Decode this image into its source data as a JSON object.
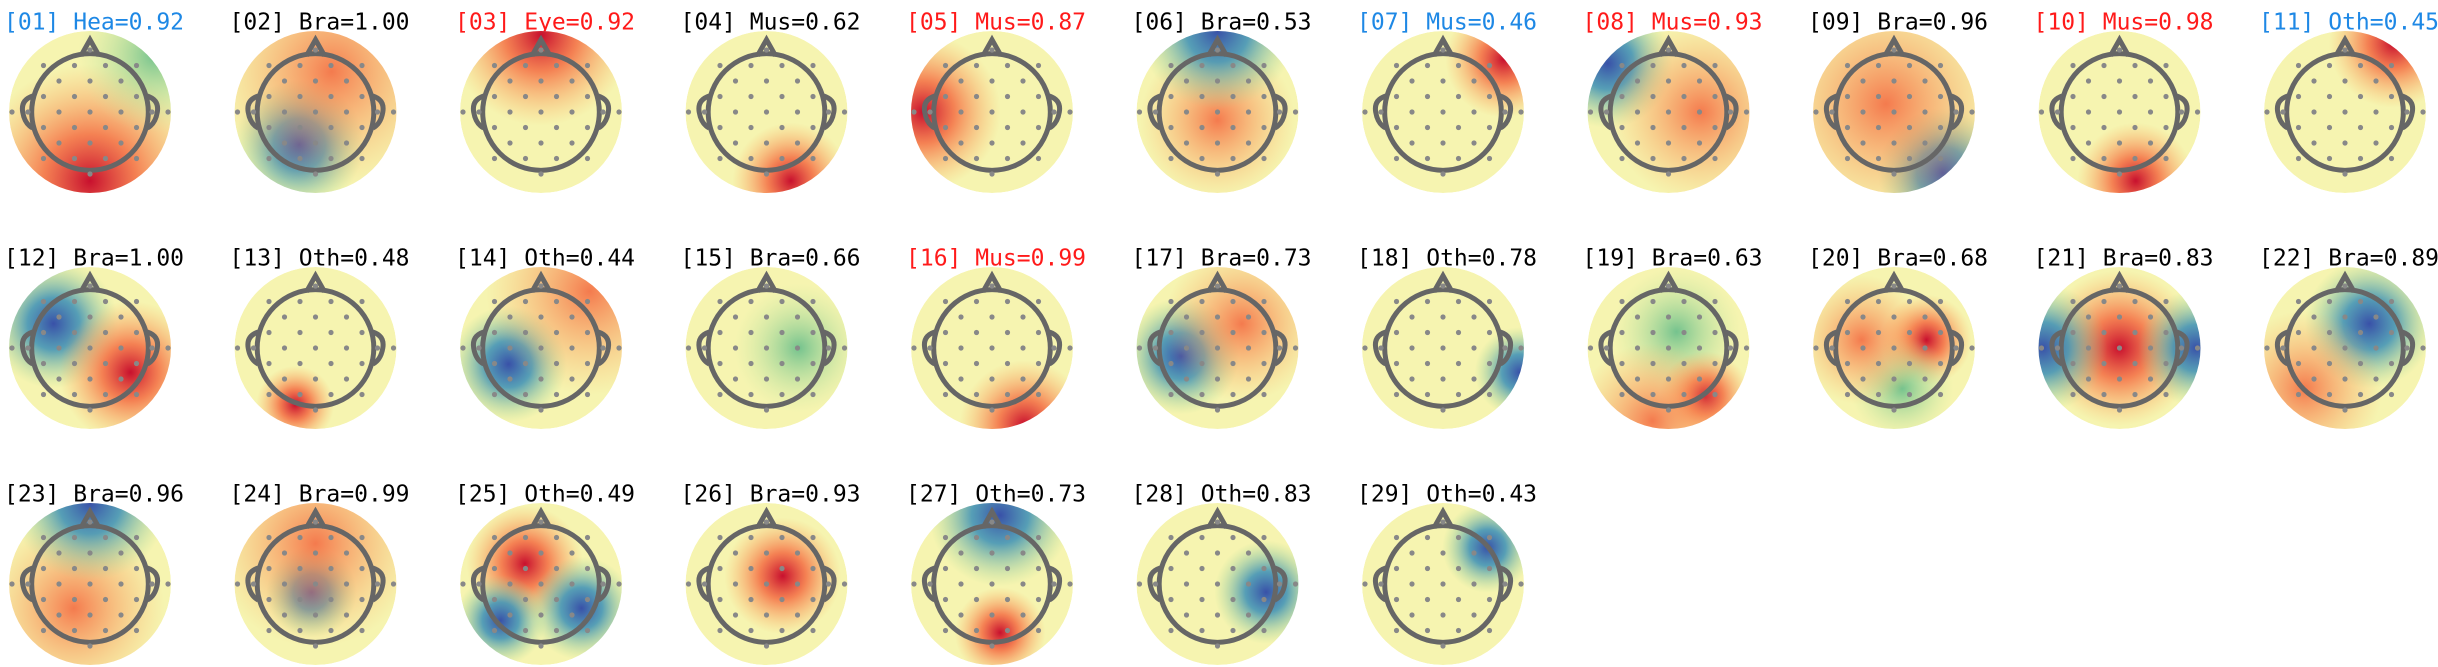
{
  "components": [
    {
      "label": "[01] Hea=0.92",
      "color": "#1e88e5"
    },
    {
      "label": "[02] Bra=1.00",
      "color": "#000000"
    },
    {
      "label": "[03] Eye=0.92",
      "color": "#ff1a1a"
    },
    {
      "label": "[04] Mus=0.62",
      "color": "#000000"
    },
    {
      "label": "[05] Mus=0.87",
      "color": "#ff1a1a"
    },
    {
      "label": "[06] Bra=0.53",
      "color": "#000000"
    },
    {
      "label": "[07] Mus=0.46",
      "color": "#1e88e5"
    },
    {
      "label": "[08] Mus=0.93",
      "color": "#ff1a1a"
    },
    {
      "label": "[09] Bra=0.96",
      "color": "#000000"
    },
    {
      "label": "[10] Mus=0.98",
      "color": "#ff1a1a"
    },
    {
      "label": "[11] Oth=0.45",
      "color": "#1e88e5"
    },
    {
      "label": "[12] Bra=1.00",
      "color": "#000000"
    },
    {
      "label": "[13] Oth=0.48",
      "color": "#000000"
    },
    {
      "label": "[14] Oth=0.44",
      "color": "#000000"
    },
    {
      "label": "[15] Bra=0.66",
      "color": "#000000"
    },
    {
      "label": "[16] Mus=0.99",
      "color": "#ff1a1a"
    },
    {
      "label": "[17] Bra=0.73",
      "color": "#000000"
    },
    {
      "label": "[18] Oth=0.78",
      "color": "#000000"
    },
    {
      "label": "[19] Bra=0.63",
      "color": "#000000"
    },
    {
      "label": "[20] Bra=0.68",
      "color": "#000000"
    },
    {
      "label": "[21] Bra=0.83",
      "color": "#000000"
    },
    {
      "label": "[22] Bra=0.89",
      "color": "#000000"
    },
    {
      "label": "[23] Bra=0.96",
      "color": "#000000"
    },
    {
      "label": "[24] Bra=0.99",
      "color": "#000000"
    },
    {
      "label": "[25] Oth=0.49",
      "color": "#000000"
    },
    {
      "label": "[26] Bra=0.93",
      "color": "#000000"
    },
    {
      "label": "[27] Oth=0.73",
      "color": "#000000"
    },
    {
      "label": "[28] Oth=0.83",
      "color": "#000000"
    },
    {
      "label": "[29] Oth=0.43",
      "color": "#000000"
    }
  ]
}
